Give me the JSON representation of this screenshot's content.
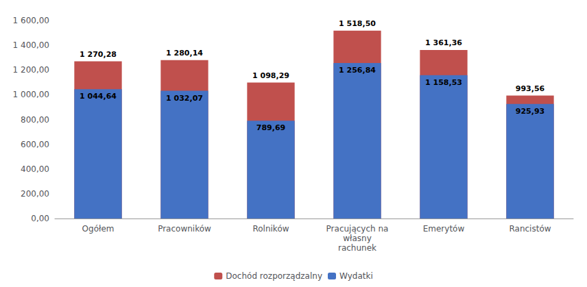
{
  "chart_data": {
    "type": "bar",
    "categories": [
      "Ogółem",
      "Pracowników",
      "Rolników",
      "Pracujących na\nwłasny\nrachunek",
      "Emerytów",
      "Rancistów"
    ],
    "series": [
      {
        "name": "Dochód rozporządzalny",
        "color": "#C0504D",
        "values": [
          1270.28,
          1280.14,
          1098.29,
          1518.5,
          1361.36,
          993.56
        ],
        "value_labels": [
          "1 270,28",
          "1 280,14",
          "1 098,29",
          "1 518,50",
          "1 361,36",
          "993,56"
        ]
      },
      {
        "name": "Wydatki",
        "color": "#4472C4",
        "values": [
          1044.64,
          1032.07,
          789.69,
          1256.84,
          1158.53,
          925.93
        ],
        "value_labels": [
          "1 044,64",
          "1 032,07",
          "789,69",
          "1 256,84",
          "1 158,53",
          "925,93"
        ]
      }
    ],
    "ylim": [
      0,
      1600
    ],
    "yticks": [
      {
        "value": 0,
        "label": "0,00"
      },
      {
        "value": 200,
        "label": "200,00"
      },
      {
        "value": 400,
        "label": "400,00"
      },
      {
        "value": 600,
        "label": "600,00"
      },
      {
        "value": 800,
        "label": "800,00"
      },
      {
        "value": 1000,
        "label": "1 000,00"
      },
      {
        "value": 1200,
        "label": "1 200,00"
      },
      {
        "value": 1400,
        "label": "1 400,00"
      },
      {
        "value": 1600,
        "label": "1 600,00"
      }
    ],
    "grid": false,
    "legend": "bottom",
    "data_labels": true
  }
}
